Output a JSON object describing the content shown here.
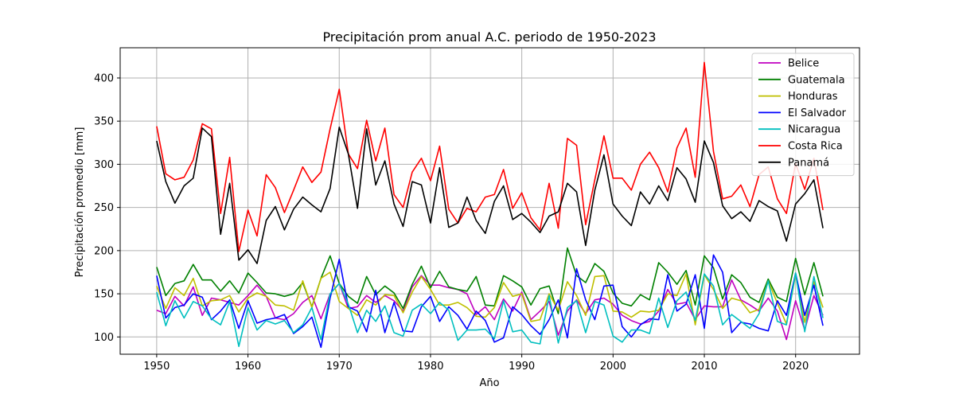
{
  "chart_data": {
    "type": "line",
    "title": "Precipitación prom anual A.C. periodo de 1950-2023",
    "xlabel": "Año",
    "ylabel": "Precipitación promedio [mm]",
    "xlim": [
      1946,
      2027
    ],
    "ylim": [
      80,
      435
    ],
    "xticks": [
      1950,
      1960,
      1970,
      1980,
      1990,
      2000,
      2010,
      2020
    ],
    "yticks": [
      100,
      150,
      200,
      250,
      300,
      350,
      400
    ],
    "grid": true,
    "legend_position": "top-right",
    "x": [
      1950,
      1951,
      1952,
      1953,
      1954,
      1955,
      1956,
      1957,
      1958,
      1959,
      1960,
      1961,
      1962,
      1963,
      1964,
      1965,
      1966,
      1967,
      1968,
      1969,
      1970,
      1971,
      1972,
      1973,
      1974,
      1975,
      1976,
      1977,
      1978,
      1979,
      1980,
      1981,
      1982,
      1983,
      1984,
      1985,
      1986,
      1987,
      1988,
      1989,
      1990,
      1991,
      1992,
      1993,
      1994,
      1995,
      1996,
      1997,
      1998,
      1999,
      2000,
      2001,
      2002,
      2003,
      2004,
      2005,
      2006,
      2007,
      2008,
      2009,
      2010,
      2011,
      2012,
      2013,
      2014,
      2015,
      2016,
      2017,
      2018,
      2019,
      2020,
      2021,
      2022,
      2023
    ],
    "series": [
      {
        "name": "Belice",
        "color": "#bf00bf",
        "values": [
          131,
          127,
          147,
          136,
          158,
          125,
          145,
          143,
          140,
          137,
          148,
          160,
          147,
          122,
          120,
          127,
          140,
          148,
          121,
          150,
          162,
          133,
          135,
          148,
          140,
          148,
          142,
          130,
          158,
          171,
          160,
          160,
          157,
          155,
          150,
          126,
          135,
          120,
          144,
          130,
          152,
          120,
          130,
          141,
          102,
          130,
          143,
          127,
          143,
          145,
          138,
          125,
          119,
          115,
          118,
          130,
          155,
          138,
          140,
          120,
          136,
          135,
          135,
          166,
          143,
          137,
          130,
          145,
          130,
          97,
          142,
          108,
          148,
          125
        ]
      },
      {
        "name": "Guatemala",
        "color": "#008000",
        "values": [
          181,
          148,
          162,
          165,
          184,
          166,
          166,
          153,
          165,
          151,
          174,
          163,
          151,
          150,
          147,
          150,
          163,
          135,
          168,
          194,
          162,
          147,
          139,
          170,
          149,
          159,
          151,
          133,
          161,
          182,
          157,
          176,
          158,
          155,
          153,
          170,
          137,
          136,
          171,
          165,
          158,
          137,
          156,
          159,
          127,
          203,
          171,
          163,
          185,
          176,
          151,
          139,
          136,
          149,
          143,
          186,
          175,
          161,
          177,
          137,
          194,
          180,
          144,
          172,
          163,
          146,
          140,
          167,
          146,
          141,
          191,
          149,
          186,
          147
        ]
      },
      {
        "name": "Honduras",
        "color": "#bfbf00",
        "values": [
          159,
          133,
          157,
          148,
          168,
          136,
          142,
          143,
          148,
          129,
          145,
          151,
          147,
          137,
          136,
          131,
          165,
          134,
          168,
          175,
          141,
          133,
          125,
          143,
          137,
          149,
          148,
          128,
          152,
          170,
          155,
          137,
          137,
          140,
          134,
          124,
          123,
          134,
          163,
          147,
          150,
          118,
          120,
          150,
          131,
          164,
          148,
          125,
          170,
          171,
          130,
          129,
          123,
          130,
          129,
          131,
          150,
          148,
          173,
          114,
          172,
          155,
          133,
          145,
          142,
          128,
          132,
          165,
          139,
          115,
          172,
          117,
          164,
          134
        ]
      },
      {
        "name": "El Salvador",
        "color": "#0000ff",
        "values": [
          171,
          122,
          134,
          137,
          150,
          146,
          120,
          130,
          143,
          110,
          142,
          116,
          120,
          122,
          126,
          104,
          112,
          123,
          88,
          145,
          190,
          135,
          130,
          106,
          154,
          105,
          140,
          107,
          106,
          135,
          147,
          118,
          135,
          125,
          109,
          130,
          119,
          94,
          99,
          135,
          126,
          113,
          103,
          120,
          143,
          99,
          179,
          143,
          120,
          159,
          160,
          112,
          100,
          114,
          121,
          120,
          172,
          130,
          138,
          172,
          110,
          195,
          175,
          105,
          117,
          115,
          110,
          107,
          142,
          125,
          174,
          125,
          160,
          113
        ]
      },
      {
        "name": "Nicaragua",
        "color": "#00bfbf",
        "values": [
          152,
          113,
          142,
          122,
          141,
          136,
          121,
          114,
          141,
          89,
          134,
          108,
          119,
          115,
          119,
          105,
          114,
          134,
          97,
          150,
          162,
          138,
          105,
          131,
          118,
          136,
          105,
          101,
          131,
          138,
          127,
          140,
          131,
          96,
          108,
          108,
          109,
          98,
          142,
          106,
          108,
          94,
          92,
          148,
          93,
          134,
          142,
          105,
          141,
          137,
          101,
          94,
          108,
          108,
          104,
          145,
          111,
          142,
          152,
          119,
          173,
          159,
          114,
          126,
          118,
          110,
          127,
          165,
          118,
          114,
          174,
          106,
          170,
          122
        ]
      },
      {
        "name": "Costa Rica",
        "color": "#ff0000",
        "values": [
          344,
          289,
          282,
          285,
          305,
          347,
          341,
          243,
          308,
          199,
          247,
          217,
          288,
          273,
          244,
          270,
          297,
          279,
          291,
          341,
          387,
          312,
          295,
          351,
          304,
          342,
          265,
          250,
          291,
          307,
          281,
          321,
          248,
          232,
          249,
          245,
          262,
          265,
          294,
          249,
          267,
          238,
          224,
          278,
          226,
          330,
          322,
          230,
          282,
          333,
          284,
          284,
          270,
          300,
          314,
          296,
          268,
          319,
          342,
          285,
          418,
          315,
          260,
          263,
          276,
          251,
          288,
          297,
          260,
          243,
          301,
          271,
          307,
          247
        ]
      },
      {
        "name": "Panamá",
        "color": "#000000",
        "values": [
          327,
          280,
          255,
          275,
          284,
          342,
          332,
          219,
          278,
          189,
          201,
          185,
          235,
          251,
          224,
          248,
          262,
          253,
          245,
          272,
          343,
          312,
          249,
          341,
          276,
          304,
          254,
          228,
          280,
          276,
          232,
          296,
          227,
          232,
          262,
          235,
          220,
          257,
          275,
          236,
          243,
          233,
          221,
          240,
          245,
          278,
          268,
          206,
          270,
          311,
          254,
          240,
          229,
          268,
          254,
          275,
          258,
          296,
          283,
          256,
          327,
          302,
          252,
          237,
          245,
          234,
          258,
          251,
          246,
          211,
          254,
          266,
          282,
          226
        ]
      }
    ]
  }
}
